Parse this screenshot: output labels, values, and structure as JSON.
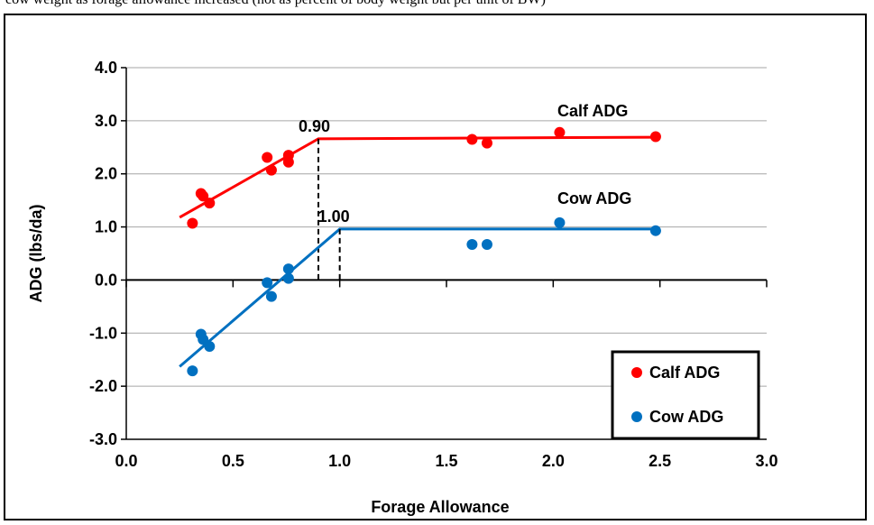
{
  "page": {
    "caption": "cow weight as forage allowance increased (not as percent of body weight but per unit of BW)"
  },
  "colors": {
    "calf": "#ff0000",
    "cow": "#0070c0",
    "grid": "#a6a6a6",
    "axis": "#000000"
  },
  "chart_data": {
    "type": "scatter",
    "title": "",
    "xlabel": "Forage Allowance",
    "ylabel": "ADG (lbs/da)",
    "xlim": [
      0.0,
      3.0
    ],
    "ylim": [
      -3.0,
      4.0
    ],
    "x_ticks": [
      "0.0",
      "0.5",
      "1.0",
      "1.5",
      "2.0",
      "2.5",
      "3.0"
    ],
    "y_ticks": [
      "4.0",
      "3.0",
      "2.0",
      "1.0",
      "0.0",
      "-1.0",
      "-2.0",
      "-3.0"
    ],
    "grid": "horizontal",
    "legend_position": "bottom-right",
    "series": [
      {
        "name": "Calf ADG",
        "color": "#ff0000",
        "points": [
          [
            0.31,
            1.07
          ],
          [
            0.35,
            1.63
          ],
          [
            0.36,
            1.58
          ],
          [
            0.39,
            1.45
          ],
          [
            0.66,
            2.31
          ],
          [
            0.68,
            2.07
          ],
          [
            0.76,
            2.35
          ],
          [
            0.76,
            2.22
          ],
          [
            1.62,
            2.65
          ],
          [
            1.69,
            2.58
          ],
          [
            2.03,
            2.78
          ],
          [
            2.48,
            2.7
          ]
        ],
        "fit": {
          "type": "broken-stick",
          "breakpoint": 0.9,
          "points": [
            [
              0.25,
              1.18
            ],
            [
              0.9,
              2.66
            ],
            [
              2.48,
              2.69
            ]
          ]
        },
        "line_label": "Calf ADG",
        "breakpoint_label": "0.90"
      },
      {
        "name": "Cow ADG",
        "color": "#0070c0",
        "points": [
          [
            0.31,
            -1.71
          ],
          [
            0.35,
            -1.02
          ],
          [
            0.36,
            -1.12
          ],
          [
            0.39,
            -1.25
          ],
          [
            0.66,
            -0.05
          ],
          [
            0.68,
            -0.31
          ],
          [
            0.76,
            0.21
          ],
          [
            0.76,
            0.03
          ],
          [
            1.62,
            0.67
          ],
          [
            1.69,
            0.67
          ],
          [
            2.03,
            1.08
          ],
          [
            2.48,
            0.93
          ]
        ],
        "fit": {
          "type": "broken-stick",
          "breakpoint": 1.0,
          "points": [
            [
              0.25,
              -1.63
            ],
            [
              1.0,
              0.96
            ],
            [
              2.48,
              0.96
            ]
          ]
        },
        "line_label": "Cow ADG",
        "breakpoint_label": "1.00"
      }
    ],
    "legend": [
      "Calf ADG",
      "Cow ADG"
    ]
  }
}
